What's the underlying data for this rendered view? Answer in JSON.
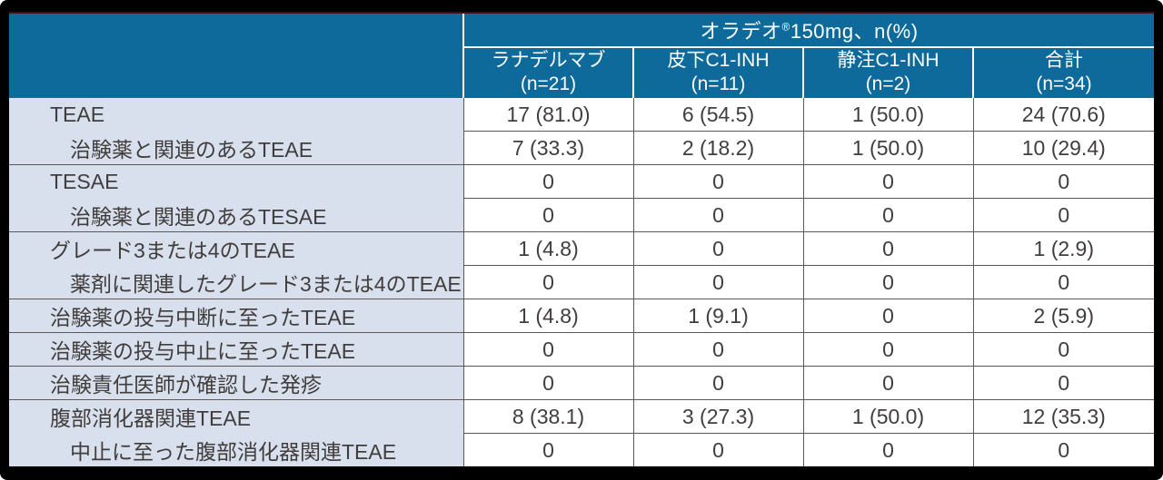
{
  "chart_data": {
    "type": "table",
    "title": "オラデオ®150mg、n(%)",
    "header": {
      "brand": "オラデオ",
      "reg_mark": "®",
      "title_rest": "150mg、n(%)"
    },
    "columns": [
      {
        "name": "ラナデルマブ",
        "n": "(n=21)"
      },
      {
        "name": "皮下C1-INH",
        "n": "(n=11)"
      },
      {
        "name": "静注C1-INH",
        "n": "(n=2)"
      },
      {
        "name": "合計",
        "n": "(n=34)"
      }
    ],
    "rows": [
      {
        "label": "TEAE",
        "indent": false,
        "values": [
          "17 (81.0)",
          "6 (54.5)",
          "1 (50.0)",
          "24 (70.6)"
        ]
      },
      {
        "label": "治験薬と関連のあるTEAE",
        "indent": true,
        "values": [
          "7 (33.3)",
          "2 (18.2)",
          "1 (50.0)",
          "10 (29.4)"
        ]
      },
      {
        "label": "TESAE",
        "indent": false,
        "values": [
          "0",
          "0",
          "0",
          "0"
        ]
      },
      {
        "label": "治験薬と関連のあるTESAE",
        "indent": true,
        "values": [
          "0",
          "0",
          "0",
          "0"
        ]
      },
      {
        "label": "グレード3または4のTEAE",
        "indent": false,
        "values": [
          "1 (4.8)",
          "0",
          "0",
          "1 (2.9)"
        ]
      },
      {
        "label": "薬剤に関連したグレード3または4のTEAE",
        "indent": true,
        "values": [
          "0",
          "0",
          "0",
          "0"
        ]
      },
      {
        "label": "治験薬の投与中断に至ったTEAE",
        "indent": false,
        "values": [
          "1 (4.8)",
          "1 (9.1)",
          "0",
          "2 (5.9)"
        ]
      },
      {
        "label": "治験薬の投与中止に至ったTEAE",
        "indent": false,
        "values": [
          "0",
          "0",
          "0",
          "0"
        ]
      },
      {
        "label": "治験責任医師が確認した発疹",
        "indent": false,
        "values": [
          "0",
          "0",
          "0",
          "0"
        ]
      },
      {
        "label": "腹部消化器関連TEAE",
        "indent": false,
        "values": [
          "8 (38.1)",
          "3 (27.3)",
          "1 (50.0)",
          "12 (35.3)"
        ]
      },
      {
        "label": "中止に至った腹部消化器関連TEAE",
        "indent": true,
        "values": [
          "0",
          "0",
          "0",
          "0"
        ]
      }
    ],
    "layout_hints": {
      "grid": true,
      "group_rows_share_label_cell_border": true
    },
    "colors": {
      "header_bg": "#0d6a9b",
      "header_text": "#ffffff",
      "label_bg": "#d7e0ec",
      "body_text": "#413d3c",
      "body_border": "#595959",
      "frame": "#000000",
      "top_accent_line": "#431115"
    }
  }
}
